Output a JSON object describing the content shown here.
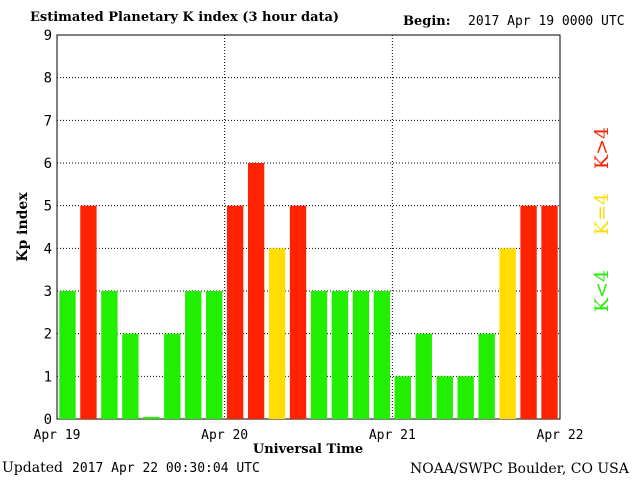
{
  "header": {
    "title": "Estimated Planetary K index (3 hour data)",
    "begin_label": "Begin:",
    "begin_value": "2017 Apr 19 0000 UTC"
  },
  "footer": {
    "updated_label": "Updated",
    "updated_value": "2017 Apr 22 00:30:04 UTC",
    "credit": "NOAA/SWPC Boulder, CO USA"
  },
  "legend": {
    "below": "K<4",
    "equal": "K=4",
    "above": "K>4"
  },
  "colors": {
    "below": "#22ee00",
    "equal": "#ffdd00",
    "above": "#ff2200"
  },
  "chart_data": {
    "type": "bar",
    "title": "Estimated Planetary K index (3 hour data)",
    "xlabel": "Universal Time",
    "ylabel": "Kp index",
    "ylim": [
      0,
      9
    ],
    "yticks": [
      "0",
      "1",
      "2",
      "3",
      "4",
      "5",
      "6",
      "7",
      "8",
      "9"
    ],
    "xtick_labels": [
      "Apr 19",
      "Apr 20",
      "Apr 21",
      "Apr 22"
    ],
    "grid": true,
    "values": [
      3,
      5,
      3,
      2,
      0.05,
      2,
      3,
      3,
      5,
      6,
      4,
      5,
      3,
      3,
      3,
      3,
      1,
      2,
      1,
      1,
      2,
      4,
      5,
      5
    ]
  }
}
